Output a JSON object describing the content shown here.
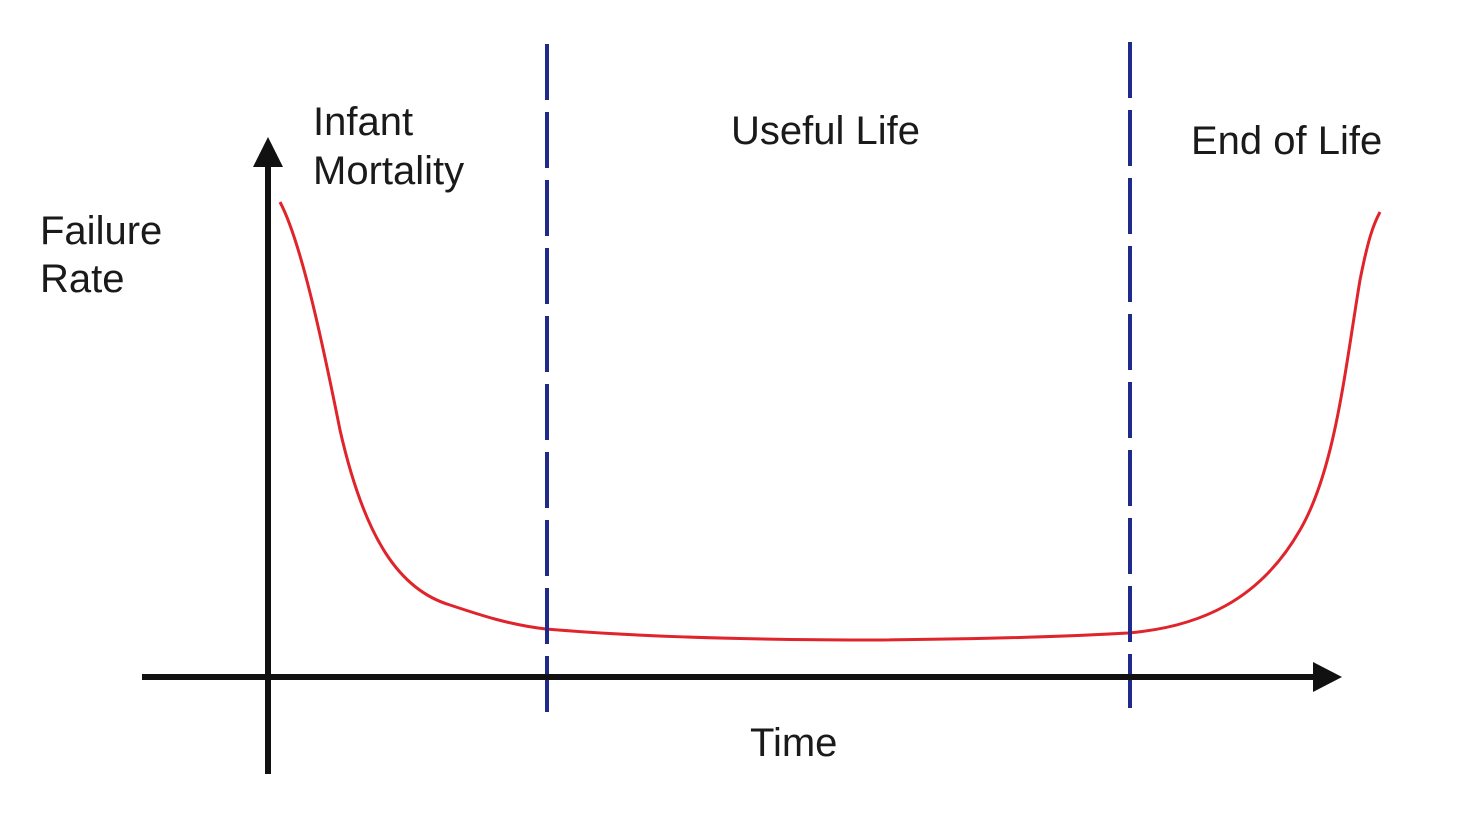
{
  "diagram": {
    "type": "bathtub-curve",
    "y_axis_label": [
      "Failure",
      "Rate"
    ],
    "x_axis_label": "Time",
    "regions": [
      {
        "label": [
          "Infant",
          "Mortality"
        ]
      },
      {
        "label": [
          "Useful Life"
        ]
      },
      {
        "label": [
          "End of Life"
        ]
      }
    ],
    "colors": {
      "curve": "#e0242b",
      "phase_divider": "#1f2a8c",
      "axes": "#111111",
      "text": "#1a1a1a",
      "background": "#ffffff"
    }
  }
}
